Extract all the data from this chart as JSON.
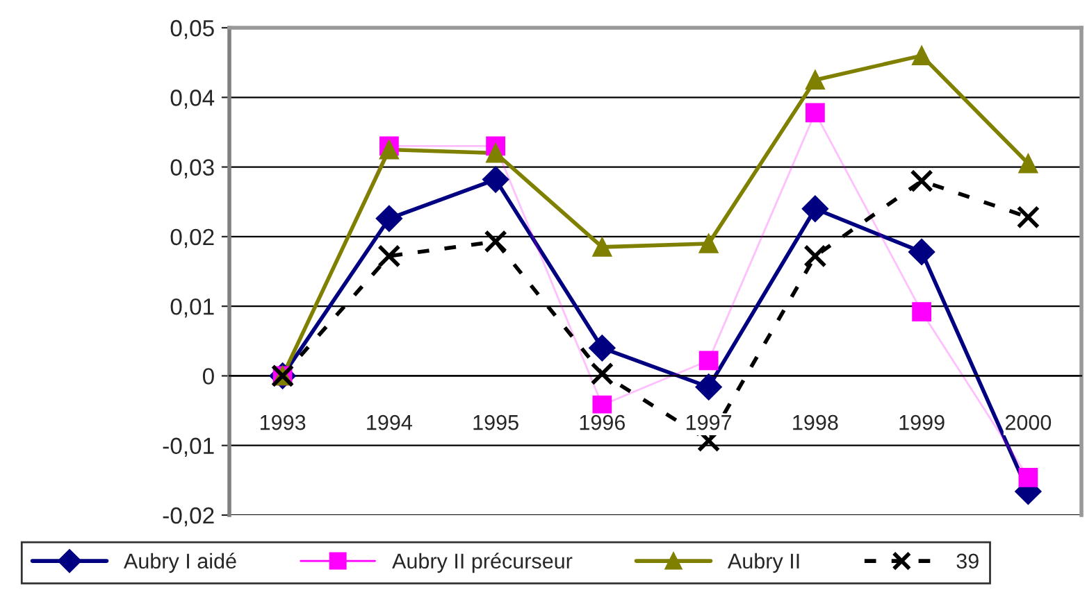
{
  "chart_data": {
    "type": "line",
    "categories": [
      "1993",
      "1994",
      "1995",
      "1996",
      "1997",
      "1998",
      "1999",
      "2000"
    ],
    "series": [
      {
        "name": "Aubry I aidé",
        "color": "#000080",
        "marker": "diamond",
        "line_style": "solid",
        "values": [
          0,
          0.0226,
          0.0282,
          0.004,
          -0.0016,
          0.024,
          0.0178,
          -0.0166
        ]
      },
      {
        "name": "Aubry II précurseur",
        "color": "#ff00ff",
        "marker": "square",
        "line_style": "solid",
        "values": [
          0,
          0.033,
          0.033,
          -0.0042,
          0.0022,
          0.0378,
          0.0092,
          -0.0146
        ]
      },
      {
        "name": "Aubry II",
        "color": "#808000",
        "marker": "triangle",
        "line_style": "solid",
        "values": [
          0,
          0.0325,
          0.032,
          0.0185,
          0.019,
          0.0425,
          0.046,
          0.0305
        ]
      },
      {
        "name": "39",
        "color": "#000000",
        "marker": "cross",
        "line_style": "dashed",
        "values": [
          0,
          0.0172,
          0.0193,
          0.0003,
          -0.0093,
          0.0172,
          0.028,
          0.0228
        ]
      }
    ],
    "ylim": [
      -0.02,
      0.05
    ],
    "yticks": [
      {
        "value": -0.02,
        "label": "-0,02"
      },
      {
        "value": -0.01,
        "label": "-0,01"
      },
      {
        "value": 0,
        "label": "0"
      },
      {
        "value": 0.01,
        "label": "0,01"
      },
      {
        "value": 0.02,
        "label": "0,02"
      },
      {
        "value": 0.03,
        "label": "0,03"
      },
      {
        "value": 0.04,
        "label": "0,04"
      },
      {
        "value": 0.05,
        "label": "0,05"
      }
    ],
    "grid": "y",
    "legend": "bottom"
  }
}
